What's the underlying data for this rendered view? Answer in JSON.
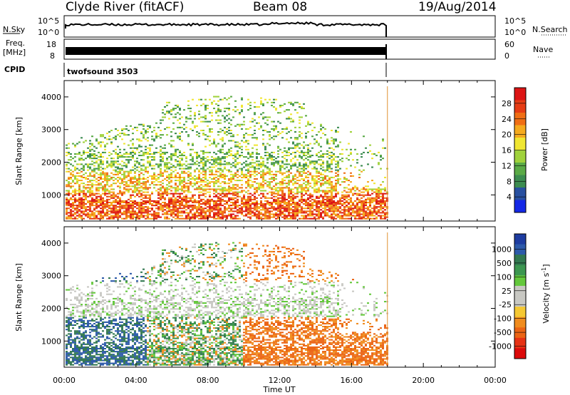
{
  "header": {
    "station": "Clyde River (fitACF)",
    "beam": "Beam 08",
    "date": "19/Aug/2014"
  },
  "top_panels": {
    "nsky_label": "N.Sky",
    "nsky_ticks": [
      "10^5",
      "10^0"
    ],
    "nsearch_label": "N.Search",
    "nsearch_ticks": [
      "10^5",
      "10^0"
    ],
    "freq_label_1": "Freq.",
    "freq_label_2": "[MHz]",
    "freq_ticks": [
      "18",
      "8"
    ],
    "nave_label": "Nave",
    "nave_ticks": [
      "60",
      "0"
    ],
    "cpid_label": "CPID",
    "cpid_value": "twofsound 3503"
  },
  "colors": {
    "power_scale": [
      "#1428e6",
      "#2850a0",
      "#3c8c50",
      "#5aaa46",
      "#a0d23c",
      "#f0e632",
      "#f5aa1e",
      "#f06e14",
      "#e63c14",
      "#dc1414"
    ],
    "velocity_scale": [
      "#1e3ca0",
      "#2d5aaa",
      "#327850",
      "#3c9650",
      "#64c83c",
      "#c8c8c3",
      "#c8c8c3",
      "#f5c832",
      "#f08c1e",
      "#eb6414",
      "#e63214",
      "#dc0a0a"
    ]
  },
  "chart_data": [
    {
      "type": "heatmap",
      "title": "",
      "xlabel": "",
      "ylabel": "Slant Range [km]",
      "x_range_hours": [
        0,
        24
      ],
      "x_ticks": [
        "00:00",
        "04:00",
        "08:00",
        "12:00",
        "16:00",
        "20:00",
        "00:00"
      ],
      "ylim": [
        200,
        4500
      ],
      "y_ticks": [
        "1000",
        "2000",
        "3000",
        "4000"
      ],
      "data_end_hour": 18,
      "colorbar": {
        "label": "Power [dB]",
        "range": [
          0,
          32
        ],
        "ticks": [
          "4",
          "8",
          "12",
          "16",
          "20",
          "24",
          "28"
        ]
      }
    },
    {
      "type": "heatmap",
      "title": "",
      "xlabel": "Time UT",
      "ylabel": "Slant Range [km]",
      "x_range_hours": [
        0,
        24
      ],
      "x_ticks": [
        "00:00",
        "04:00",
        "08:00",
        "12:00",
        "16:00",
        "20:00",
        "00:00"
      ],
      "ylim": [
        200,
        4500
      ],
      "y_ticks": [
        "1000",
        "2000",
        "3000",
        "4000"
      ],
      "data_end_hour": 18,
      "colorbar": {
        "label": "Velocity [m s^-1]",
        "ticks": [
          "1000",
          "500",
          "100",
          "25",
          "-25",
          "-100",
          "-500",
          "-1000"
        ]
      }
    }
  ]
}
